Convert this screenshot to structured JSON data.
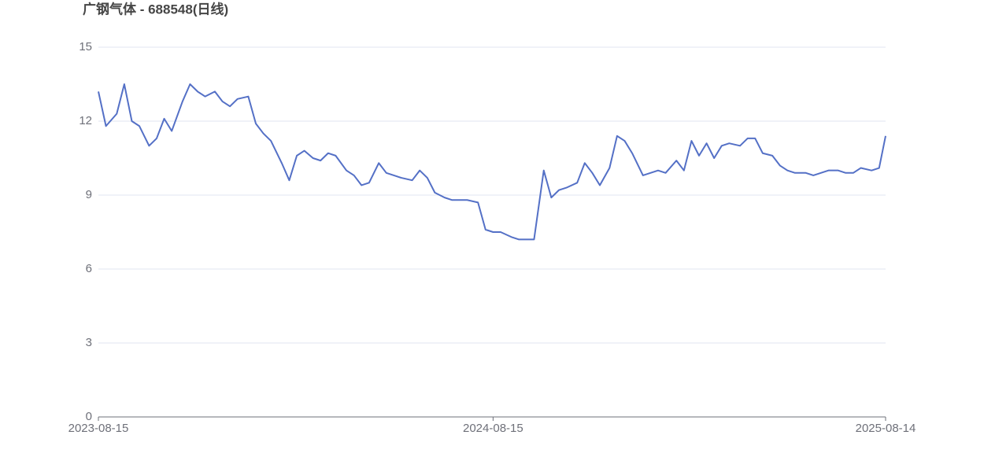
{
  "chart_data": {
    "type": "line",
    "title": "广钢气体 - 688548(日线)",
    "x": [
      "2023-08-15",
      "2023-08-22",
      "2023-09-01",
      "2023-09-08",
      "2023-09-15",
      "2023-09-22",
      "2023-10-01",
      "2023-10-08",
      "2023-10-15",
      "2023-10-22",
      "2023-11-01",
      "2023-11-08",
      "2023-11-15",
      "2023-11-22",
      "2023-12-01",
      "2023-12-08",
      "2023-12-15",
      "2023-12-22",
      "2024-01-01",
      "2024-01-08",
      "2024-01-15",
      "2024-01-22",
      "2024-02-01",
      "2024-02-08",
      "2024-02-15",
      "2024-02-22",
      "2024-03-01",
      "2024-03-08",
      "2024-03-15",
      "2024-03-22",
      "2024-04-01",
      "2024-04-08",
      "2024-04-15",
      "2024-04-22",
      "2024-05-01",
      "2024-05-08",
      "2024-05-15",
      "2024-05-22",
      "2024-06-01",
      "2024-06-08",
      "2024-06-15",
      "2024-06-22",
      "2024-07-01",
      "2024-07-08",
      "2024-07-15",
      "2024-07-22",
      "2024-08-01",
      "2024-08-08",
      "2024-08-15",
      "2024-08-22",
      "2024-09-01",
      "2024-09-08",
      "2024-09-15",
      "2024-09-22",
      "2024-10-01",
      "2024-10-08",
      "2024-10-15",
      "2024-10-22",
      "2024-11-01",
      "2024-11-08",
      "2024-11-15",
      "2024-11-22",
      "2024-12-01",
      "2024-12-08",
      "2024-12-15",
      "2024-12-22",
      "2025-01-01",
      "2025-01-08",
      "2025-01-15",
      "2025-01-22",
      "2025-02-01",
      "2025-02-08",
      "2025-02-15",
      "2025-02-22",
      "2025-03-01",
      "2025-03-08",
      "2025-03-15",
      "2025-03-22",
      "2025-04-01",
      "2025-04-08",
      "2025-04-15",
      "2025-04-22",
      "2025-05-01",
      "2025-05-08",
      "2025-05-15",
      "2025-05-22",
      "2025-06-01",
      "2025-06-08",
      "2025-06-15",
      "2025-06-22",
      "2025-07-01",
      "2025-07-08",
      "2025-07-15",
      "2025-07-22",
      "2025-08-01",
      "2025-08-08",
      "2025-08-14"
    ],
    "series": [
      {
        "color": "#5470c6",
        "values": [
          13.2,
          11.8,
          12.3,
          13.5,
          12.0,
          11.8,
          11.0,
          11.3,
          12.1,
          11.6,
          12.8,
          13.5,
          13.2,
          13.0,
          13.2,
          12.8,
          12.6,
          12.9,
          13.0,
          11.9,
          11.5,
          11.2,
          10.3,
          9.6,
          10.6,
          10.8,
          10.5,
          10.4,
          10.7,
          10.6,
          10.0,
          9.8,
          9.4,
          9.5,
          10.3,
          9.9,
          9.8,
          9.7,
          9.6,
          10.0,
          9.7,
          9.1,
          8.9,
          8.8,
          8.8,
          8.8,
          8.7,
          7.6,
          7.5,
          7.5,
          7.3,
          7.2,
          7.2,
          7.2,
          10.0,
          8.9,
          9.2,
          9.3,
          9.5,
          10.3,
          9.9,
          9.4,
          10.1,
          11.4,
          11.2,
          10.7,
          9.8,
          9.9,
          10.0,
          9.9,
          10.4,
          10.0,
          11.2,
          10.6,
          11.1,
          10.5,
          11.0,
          11.1,
          11.0,
          11.3,
          11.3,
          10.7,
          10.6,
          10.2,
          10.0,
          9.9,
          9.9,
          9.8,
          9.9,
          10.0,
          10.0,
          9.9,
          9.9,
          10.1,
          10.0,
          10.1,
          11.4
        ]
      }
    ],
    "xlim": [
      "2023-08-15",
      "2025-08-14"
    ],
    "xticks": [
      "2023-08-15",
      "2024-08-15",
      "2025-08-14"
    ],
    "ylim": [
      0,
      15
    ],
    "yticks": [
      0,
      3,
      6,
      9,
      12,
      15
    ],
    "grid": true
  }
}
